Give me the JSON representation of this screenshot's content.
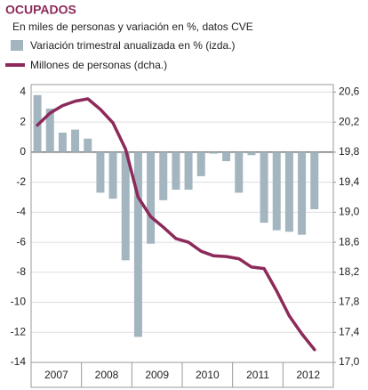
{
  "chart_data": {
    "type": "bar_line",
    "title": "OCUPADOS",
    "subtitle": "En miles de personas y variación en %, datos CVE",
    "categories": [
      null,
      null,
      null,
      null,
      null,
      null,
      null,
      null,
      null,
      null,
      null,
      null,
      null,
      null,
      null,
      null,
      null,
      null,
      null,
      null,
      null,
      null,
      null,
      null
    ],
    "groups": [
      "2007",
      "2008",
      "2009",
      "2010",
      "2011",
      "2012"
    ],
    "series": [
      {
        "name": "Variación trimestral anualizada en % (izda.)",
        "color": "#a3b5bf",
        "type": "bar",
        "values": [
          3.8,
          2.9,
          1.3,
          1.5,
          0.9,
          -2.7,
          -3.1,
          -7.2,
          -12.3,
          -6.1,
          -3.2,
          -2.5,
          -2.5,
          -1.6,
          -0.1,
          -0.6,
          -2.7,
          -0.2,
          -4.7,
          -5.2,
          -5.3,
          -5.5,
          -3.8,
          null
        ]
      },
      {
        "name": "Millones de personas (dcha.)",
        "color": "#8c2a5a",
        "type": "line",
        "axis": "y2",
        "values": [
          20.16,
          20.32,
          20.42,
          20.48,
          20.51,
          20.37,
          20.19,
          19.84,
          19.2,
          18.94,
          18.8,
          18.65,
          18.6,
          18.48,
          18.42,
          18.41,
          18.38,
          18.27,
          18.25,
          17.95,
          17.62,
          17.38,
          17.17,
          null
        ]
      }
    ],
    "ylim": [
      -14,
      4.5
    ],
    "yticks": [
      4,
      2,
      0,
      -2,
      -4,
      -6,
      -8,
      -10,
      -12,
      -14
    ],
    "y2lim": [
      17.0,
      20.7
    ],
    "y2ticks": [
      {
        "value": 20.6,
        "label": "20,6"
      },
      {
        "value": 20.2,
        "label": "20,2"
      },
      {
        "value": 19.8,
        "label": "19,8"
      },
      {
        "value": 19.4,
        "label": "19,4"
      },
      {
        "value": 19.0,
        "label": "19,0"
      },
      {
        "value": 18.6,
        "label": "18,6"
      },
      {
        "value": 18.2,
        "label": "18,2"
      },
      {
        "value": 17.8,
        "label": "17,8"
      },
      {
        "value": 17.4,
        "label": "17,4"
      },
      {
        "value": 17.0,
        "label": "17,0"
      }
    ],
    "grid": true
  }
}
